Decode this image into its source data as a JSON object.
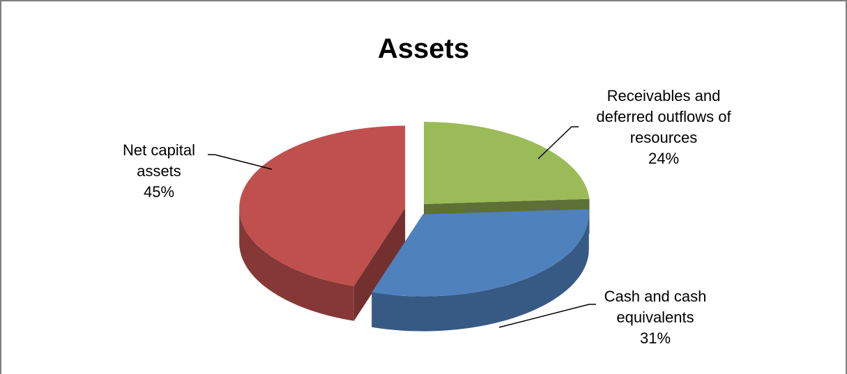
{
  "chart_data": {
    "type": "pie",
    "title": "Assets",
    "categories": [
      "Receivables and deferred outflows of resources",
      "Cash and cash equivalents",
      "Net capital assets"
    ],
    "values": [
      24,
      31,
      45
    ],
    "value_labels": [
      "24%",
      "31%",
      "45%"
    ],
    "colors": [
      "#9bbb59",
      "#4f81bd",
      "#c0504d"
    ]
  }
}
